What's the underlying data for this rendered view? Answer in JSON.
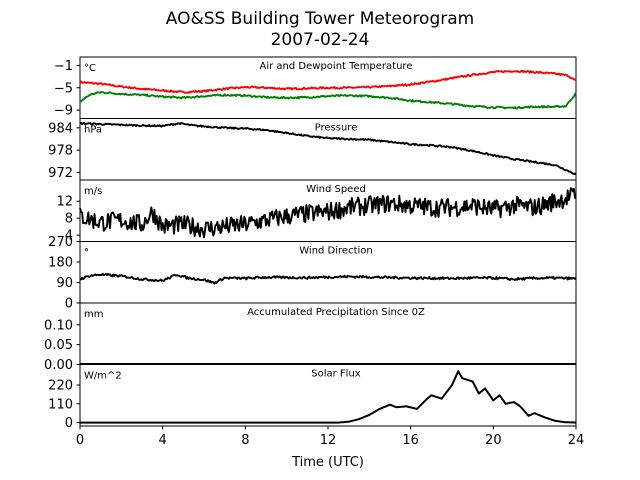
{
  "title": "AO&SS Building Tower Meteorogram",
  "subtitle": "2007-02-24",
  "xlabel": "Time (UTC)",
  "chart_data": [
    {
      "type": "line",
      "title": "Air and Dewpoint Temperature",
      "unit": "°C",
      "xlim": [
        0,
        24
      ],
      "ylim": [
        -10.5,
        0.5
      ],
      "yticks": [
        -1,
        -5,
        -9
      ],
      "ytick_labels": [
        "−1",
        "−5",
        "−9"
      ],
      "noise": 0.15,
      "series": [
        {
          "color": "#ff0000",
          "x": [
            0,
            1,
            2,
            3,
            4,
            5,
            6,
            7,
            8,
            9,
            10,
            11,
            12,
            13,
            14,
            15,
            16,
            17,
            18,
            19,
            20,
            21,
            22,
            23,
            23.6,
            24
          ],
          "y": [
            -4.0,
            -4.3,
            -4.8,
            -5.2,
            -5.5,
            -5.8,
            -5.6,
            -5.2,
            -4.9,
            -5.0,
            -5.2,
            -5.1,
            -5.0,
            -5.0,
            -4.9,
            -4.7,
            -4.4,
            -3.9,
            -3.3,
            -2.7,
            -2.2,
            -2.0,
            -2.2,
            -2.5,
            -2.8,
            -3.8
          ]
        },
        {
          "color": "#008000",
          "x": [
            0,
            0.5,
            1,
            2,
            3,
            4,
            5,
            6,
            7,
            8,
            9,
            10,
            11,
            12,
            13,
            14,
            15,
            16,
            17,
            18,
            19,
            20,
            21,
            22,
            23,
            23.5,
            24
          ],
          "y": [
            -7.5,
            -6.2,
            -5.8,
            -6.1,
            -6.3,
            -6.6,
            -6.8,
            -6.5,
            -6.3,
            -6.4,
            -6.7,
            -6.8,
            -6.7,
            -6.5,
            -6.4,
            -6.5,
            -6.8,
            -7.3,
            -7.6,
            -7.9,
            -8.3,
            -8.5,
            -8.6,
            -8.4,
            -8.4,
            -8.3,
            -6.0
          ]
        }
      ]
    },
    {
      "type": "line",
      "title": "Pressure",
      "unit": "hPa",
      "xlim": [
        0,
        24
      ],
      "ylim": [
        970,
        986.5
      ],
      "yticks": [
        984,
        978,
        972
      ],
      "ytick_labels": [
        "984",
        "978",
        "972"
      ],
      "noise": 0.2,
      "series": [
        {
          "color": "#000000",
          "x": [
            0,
            1,
            2,
            3,
            4,
            4.8,
            5.5,
            6,
            7,
            8,
            9,
            10,
            11,
            12,
            13,
            14,
            15,
            16,
            17,
            18,
            19,
            20,
            21,
            22,
            23,
            24
          ],
          "y": [
            985.2,
            985.0,
            984.8,
            984.6,
            984.5,
            985.2,
            984.6,
            984.4,
            984.0,
            983.8,
            983.4,
            982.6,
            981.8,
            981.2,
            981.0,
            980.8,
            980.2,
            979.6,
            979.3,
            978.8,
            977.8,
            976.6,
            975.6,
            974.8,
            974.0,
            971.5
          ]
        }
      ]
    },
    {
      "type": "line",
      "title": "Wind Speed",
      "unit": "m/s",
      "xlim": [
        0,
        24
      ],
      "ylim": [
        2.5,
        17
      ],
      "yticks": [
        12,
        8,
        4
      ],
      "ytick_labels": [
        "12",
        "8",
        "4"
      ],
      "noise": 2.2,
      "series": [
        {
          "color": "#000000",
          "x": [
            0,
            1,
            2,
            3,
            3.5,
            4,
            5,
            6,
            7,
            8,
            9,
            10,
            11,
            12,
            13,
            14,
            15,
            16,
            17,
            18,
            19,
            20,
            21,
            22,
            23,
            24
          ],
          "y": [
            8.5,
            7.0,
            7.5,
            6.5,
            9.5,
            6.0,
            6.5,
            5.5,
            6.0,
            6.5,
            7.5,
            8.5,
            9.0,
            9.5,
            10.5,
            11.0,
            11.5,
            11.0,
            10.5,
            10.5,
            11.0,
            10.0,
            11.0,
            10.5,
            12.0,
            13.5
          ]
        }
      ]
    },
    {
      "type": "line",
      "title": "Wind Direction",
      "unit": "°",
      "xlim": [
        0,
        24
      ],
      "ylim": [
        0,
        270
      ],
      "yticks": [
        270,
        180,
        90,
        0
      ],
      "ytick_labels": [
        "270",
        "180",
        "90",
        "0"
      ],
      "noise": 5,
      "series": [
        {
          "color": "#000000",
          "x": [
            0,
            0.5,
            1,
            2,
            3,
            4,
            4.7,
            5.2,
            6,
            6.5,
            7,
            8,
            9,
            10,
            11,
            12,
            13,
            14,
            15,
            16,
            17,
            18,
            19,
            20,
            21,
            22,
            23,
            24
          ],
          "y": [
            105,
            120,
            125,
            118,
            105,
            98,
            125,
            110,
            102,
            88,
            110,
            108,
            113,
            112,
            111,
            114,
            116,
            114,
            112,
            110,
            109,
            108,
            110,
            110,
            104,
            109,
            110,
            107
          ]
        }
      ]
    },
    {
      "type": "line",
      "title": "Accumulated Precipitation Since 0Z",
      "unit": "mm",
      "xlim": [
        0,
        24
      ],
      "ylim": [
        0,
        0.155
      ],
      "yticks": [
        0.1,
        0.05,
        0.0
      ],
      "ytick_labels": [
        "0.10",
        "0.05",
        "0.00"
      ],
      "noise": 0,
      "series": [
        {
          "color": "#000000",
          "x": [
            0,
            24
          ],
          "y": [
            0,
            0
          ]
        }
      ]
    },
    {
      "type": "line",
      "title": "Solar Flux",
      "unit": "W/m^2",
      "xlim": [
        0,
        24
      ],
      "ylim": [
        -20,
        340
      ],
      "yticks": [
        220,
        110,
        0
      ],
      "ytick_labels": [
        "220",
        "110",
        "0"
      ],
      "noise": 0,
      "series": [
        {
          "color": "#000000",
          "x": [
            0,
            12.5,
            13,
            13.5,
            14,
            14.5,
            15,
            15.3,
            15.8,
            16.3,
            16.8,
            17.0,
            17.5,
            18,
            18.3,
            18.5,
            19,
            19.3,
            19.6,
            20,
            20.3,
            20.6,
            21,
            21.3,
            21.7,
            22,
            22.5,
            23,
            23.5,
            24
          ],
          "y": [
            0,
            0,
            5,
            20,
            45,
            80,
            105,
            90,
            95,
            80,
            140,
            160,
            140,
            220,
            300,
            260,
            240,
            170,
            200,
            130,
            160,
            110,
            120,
            95,
            40,
            55,
            30,
            10,
            2,
            0
          ]
        }
      ]
    }
  ],
  "xaxis": {
    "ticks": [
      0,
      4,
      8,
      12,
      16,
      20,
      24
    ],
    "tick_labels": [
      "0",
      "4",
      "8",
      "12",
      "16",
      "20",
      "24"
    ]
  }
}
